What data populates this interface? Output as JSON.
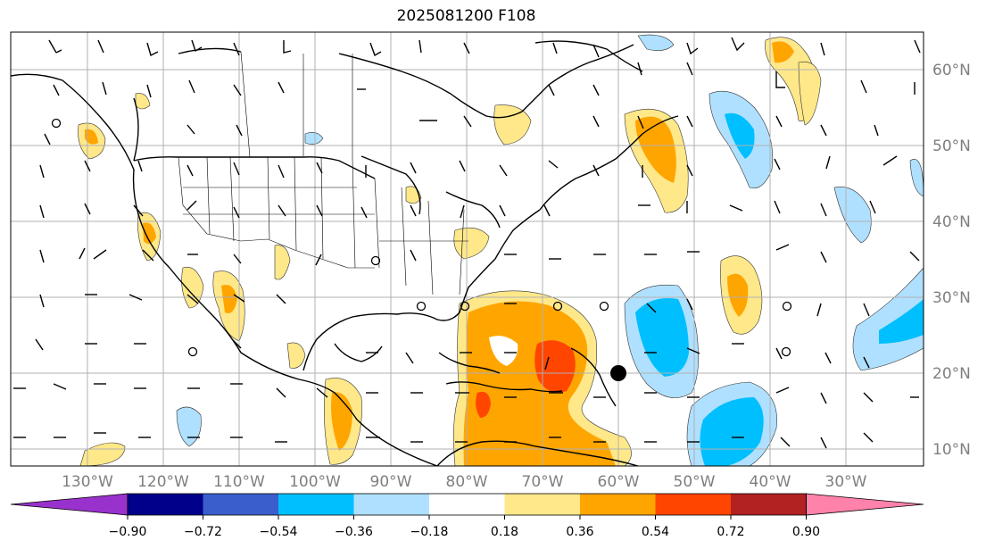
{
  "title": "2025081200 F108",
  "map": {
    "lat_labels": [
      "60°N",
      "50°N",
      "40°N",
      "30°N",
      "20°N",
      "10°N"
    ],
    "lon_labels": [
      "130°W",
      "120°W",
      "110°W",
      "100°W",
      "90°W",
      "80°W",
      "70°W",
      "60°W",
      "50°W",
      "40°W",
      "30°W"
    ],
    "marker": "storm-center-dot"
  },
  "colorbar": {
    "ticks": [
      "−0.90",
      "−0.72",
      "−0.54",
      "−0.36",
      "−0.18",
      "0.18",
      "0.36",
      "0.54",
      "0.72",
      "0.90"
    ],
    "colors": [
      "#9932cc",
      "#00008b",
      "#3a5fcd",
      "#00bfff",
      "#b0e0ff",
      "#ffffff",
      "#ffe88a",
      "#ffa500",
      "#ff4500",
      "#b22222",
      "#ff82ab"
    ]
  }
}
